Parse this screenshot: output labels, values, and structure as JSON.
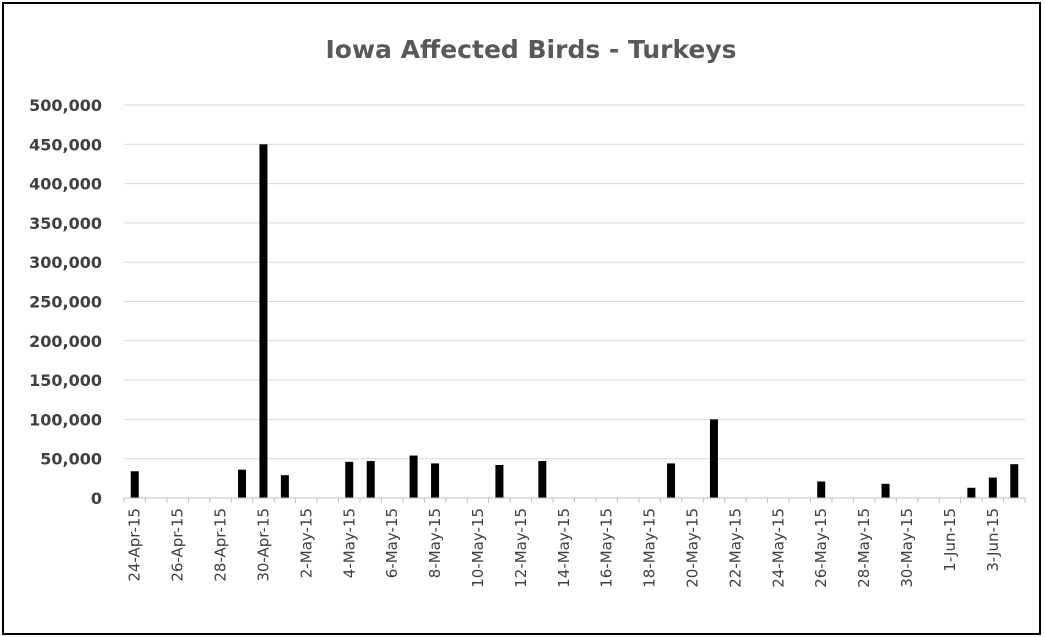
{
  "chart_data": {
    "type": "bar",
    "title": "Iowa Affected Birds - Turkeys",
    "xlabel": "",
    "ylabel": "",
    "ylim": [
      0,
      500000
    ],
    "yticks": [
      "0",
      "50,000",
      "100,000",
      "150,000",
      "200,000",
      "250,000",
      "300,000",
      "350,000",
      "400,000",
      "450,000",
      "500,000"
    ],
    "x_start": "24-Apr-15",
    "x_end": "4-Jun-15",
    "xtick_labels": [
      "24-Apr-15",
      "26-Apr-15",
      "28-Apr-15",
      "30-Apr-15",
      "2-May-15",
      "4-May-15",
      "6-May-15",
      "8-May-15",
      "10-May-15",
      "12-May-15",
      "14-May-15",
      "16-May-15",
      "18-May-15",
      "20-May-15",
      "22-May-15",
      "24-May-15",
      "26-May-15",
      "28-May-15",
      "30-May-15",
      "1-Jun-15",
      "3-Jun-15"
    ],
    "points": [
      {
        "date": "24-Apr-15",
        "value": 34000
      },
      {
        "date": "29-Apr-15",
        "value": 36000
      },
      {
        "date": "30-Apr-15",
        "value": 450000
      },
      {
        "date": "1-May-15",
        "value": 29000
      },
      {
        "date": "4-May-15",
        "value": 46000
      },
      {
        "date": "5-May-15",
        "value": 47000
      },
      {
        "date": "7-May-15",
        "value": 54000
      },
      {
        "date": "8-May-15",
        "value": 44000
      },
      {
        "date": "11-May-15",
        "value": 42000
      },
      {
        "date": "13-May-15",
        "value": 47000
      },
      {
        "date": "19-May-15",
        "value": 44000
      },
      {
        "date": "21-May-15",
        "value": 100000
      },
      {
        "date": "26-May-15",
        "value": 21000
      },
      {
        "date": "29-May-15",
        "value": 18000
      },
      {
        "date": "2-Jun-15",
        "value": 13000
      },
      {
        "date": "3-Jun-15",
        "value": 26000
      },
      {
        "date": "4-Jun-15",
        "value": 43000
      }
    ],
    "bar_color": "#000000",
    "grid": true,
    "legend": "none"
  }
}
